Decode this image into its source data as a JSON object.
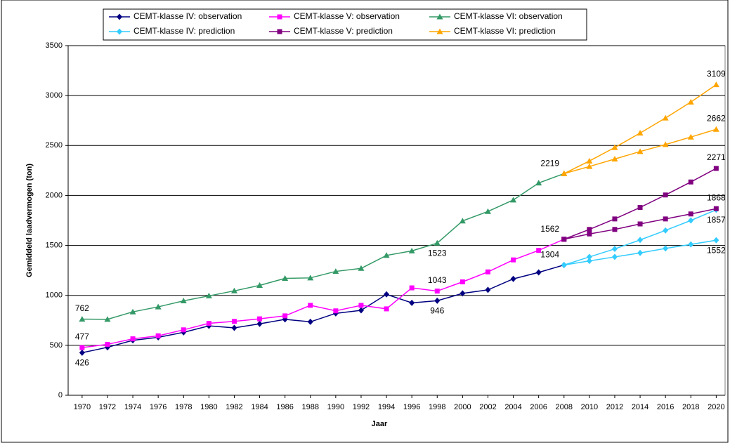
{
  "chart_data": {
    "type": "line",
    "y_label": "Gemiddeld laadvermogen (ton)",
    "x_label": "Jaar",
    "x": [
      1970,
      1972,
      1974,
      1976,
      1978,
      1980,
      1982,
      1984,
      1986,
      1988,
      1990,
      1992,
      1994,
      1996,
      1998,
      2000,
      2002,
      2004,
      2006,
      2008
    ],
    "xlim": [
      1968.9,
      2020.7
    ],
    "xticks": [
      1970,
      1972,
      1974,
      1976,
      1978,
      1980,
      1982,
      1984,
      1986,
      1988,
      1990,
      1992,
      1994,
      1996,
      1998,
      2000,
      2002,
      2004,
      2006,
      2008,
      2010,
      2012,
      2014,
      2016,
      2018,
      2020
    ],
    "ylim": [
      0,
      3500
    ],
    "yticks": [
      0,
      500,
      1000,
      1500,
      2000,
      2500,
      3000,
      3500
    ],
    "grid": true,
    "legend": "top",
    "series": [
      {
        "name": "CEMT-klasse IV: observation",
        "color": "#000080",
        "marker": "diamond",
        "values": [
          426,
          480,
          550,
          580,
          630,
          695,
          675,
          715,
          760,
          735,
          820,
          850,
          1010,
          925,
          946,
          1020,
          1055,
          1165,
          1230,
          1304
        ],
        "labels": [
          {
            "index": 0,
            "position": "below"
          },
          {
            "index": 14,
            "position": "below"
          },
          {
            "index": 19,
            "position": "above-left"
          }
        ]
      },
      {
        "name": "CEMT-klasse V: observation",
        "color": "#ff00ff",
        "marker": "square",
        "values": [
          477,
          510,
          565,
          595,
          655,
          720,
          740,
          765,
          795,
          900,
          845,
          900,
          865,
          1075,
          1043,
          1135,
          1235,
          1355,
          1450,
          1562
        ],
        "labels": [
          {
            "index": 0,
            "position": "above"
          },
          {
            "index": 14,
            "position": "above"
          },
          {
            "index": 19,
            "position": "above-left"
          }
        ]
      },
      {
        "name": "CEMT-klasse VI: observation",
        "color": "#339966",
        "marker": "triangle",
        "values": [
          762,
          760,
          835,
          885,
          945,
          995,
          1045,
          1100,
          1170,
          1175,
          1240,
          1270,
          1400,
          1445,
          1523,
          1745,
          1840,
          1955,
          2125,
          2219
        ],
        "labels": [
          {
            "index": 0,
            "position": "above"
          },
          {
            "index": 14,
            "position": "below"
          },
          {
            "index": 19,
            "position": "above-left"
          }
        ]
      },
      {
        "name": "CEMT-klasse IV: prediction",
        "color": "#33ccff",
        "marker": "diamond",
        "x": [
          2008,
          2010,
          2012,
          2014,
          2016,
          2018,
          2020
        ],
        "lines": [
          [
            1304,
            1385,
            1465,
            1555,
            1650,
            1750,
            1857
          ],
          [
            1304,
            1345,
            1385,
            1425,
            1470,
            1510,
            1552
          ]
        ],
        "labels": [
          {
            "line": 0,
            "index": 6,
            "position": "below"
          },
          {
            "line": 1,
            "index": 6,
            "position": "below"
          }
        ]
      },
      {
        "name": "CEMT-klasse V: prediction",
        "color": "#800080",
        "marker": "square",
        "x": [
          2008,
          2010,
          2012,
          2014,
          2016,
          2018,
          2020
        ],
        "lines": [
          [
            1562,
            1660,
            1765,
            1880,
            2005,
            2135,
            2271
          ],
          [
            1562,
            1615,
            1660,
            1715,
            1765,
            1815,
            1868
          ]
        ],
        "labels": [
          {
            "line": 0,
            "index": 6,
            "position": "above"
          },
          {
            "line": 1,
            "index": 6,
            "position": "above"
          }
        ]
      },
      {
        "name": "CEMT-klasse VI: prediction",
        "color": "#ffa500",
        "marker": "triangle",
        "x": [
          2008,
          2010,
          2012,
          2014,
          2016,
          2018,
          2020
        ],
        "lines": [
          [
            2219,
            2345,
            2480,
            2625,
            2775,
            2935,
            3109
          ],
          [
            2219,
            2290,
            2365,
            2440,
            2510,
            2585,
            2662
          ]
        ],
        "labels": [
          {
            "line": 0,
            "index": 6,
            "position": "above"
          },
          {
            "line": 1,
            "index": 6,
            "position": "above"
          }
        ]
      }
    ]
  }
}
